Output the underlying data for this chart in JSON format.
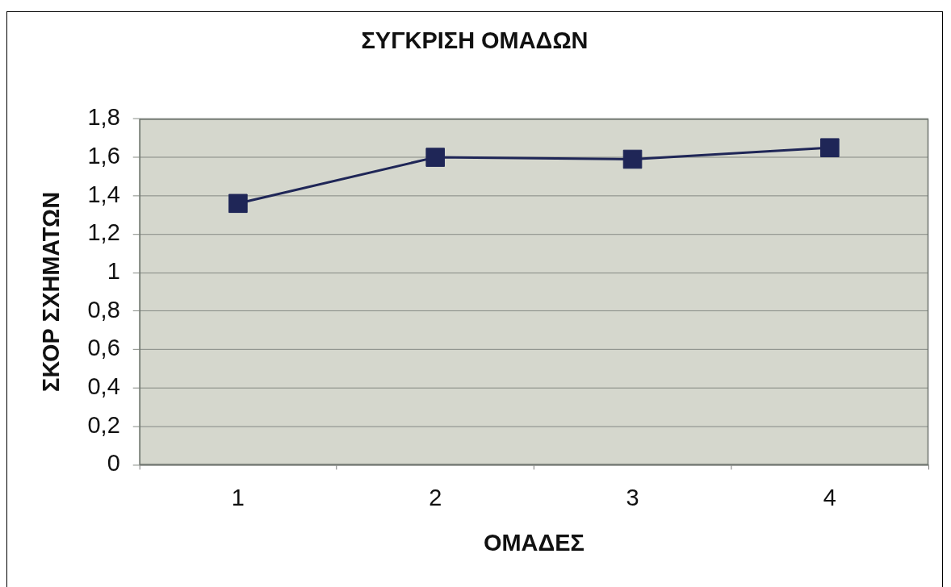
{
  "chart_data": {
    "type": "line",
    "title": "ΣΥΓΚΡΙΣΗ ΟΜΑΔΩΝ",
    "xlabel": "ΟΜΑΔΕΣ",
    "ylabel": "ΣΚΟΡ ΣΧΗΜΑΤΩΝ",
    "categories": [
      "1",
      "2",
      "3",
      "4"
    ],
    "values": [
      1.36,
      1.6,
      1.59,
      1.65
    ],
    "color": "#1f2657",
    "ylim": [
      0,
      1.8
    ],
    "yticks": [
      0,
      {
        "value": 0.2,
        "label": "0,2"
      },
      {
        "value": 0.4,
        "label": "0,4"
      },
      {
        "value": 0.6,
        "label": "0,6"
      },
      {
        "value": 0.8,
        "label": "0,8"
      },
      1,
      {
        "value": 1.2,
        "label": "1,2"
      },
      {
        "value": 1.4,
        "label": "1,4"
      },
      {
        "value": 1.6,
        "label": "1,6"
      },
      {
        "value": 1.8,
        "label": "1,8"
      }
    ],
    "grid": "y",
    "marker": "square",
    "line_style": "solid"
  }
}
